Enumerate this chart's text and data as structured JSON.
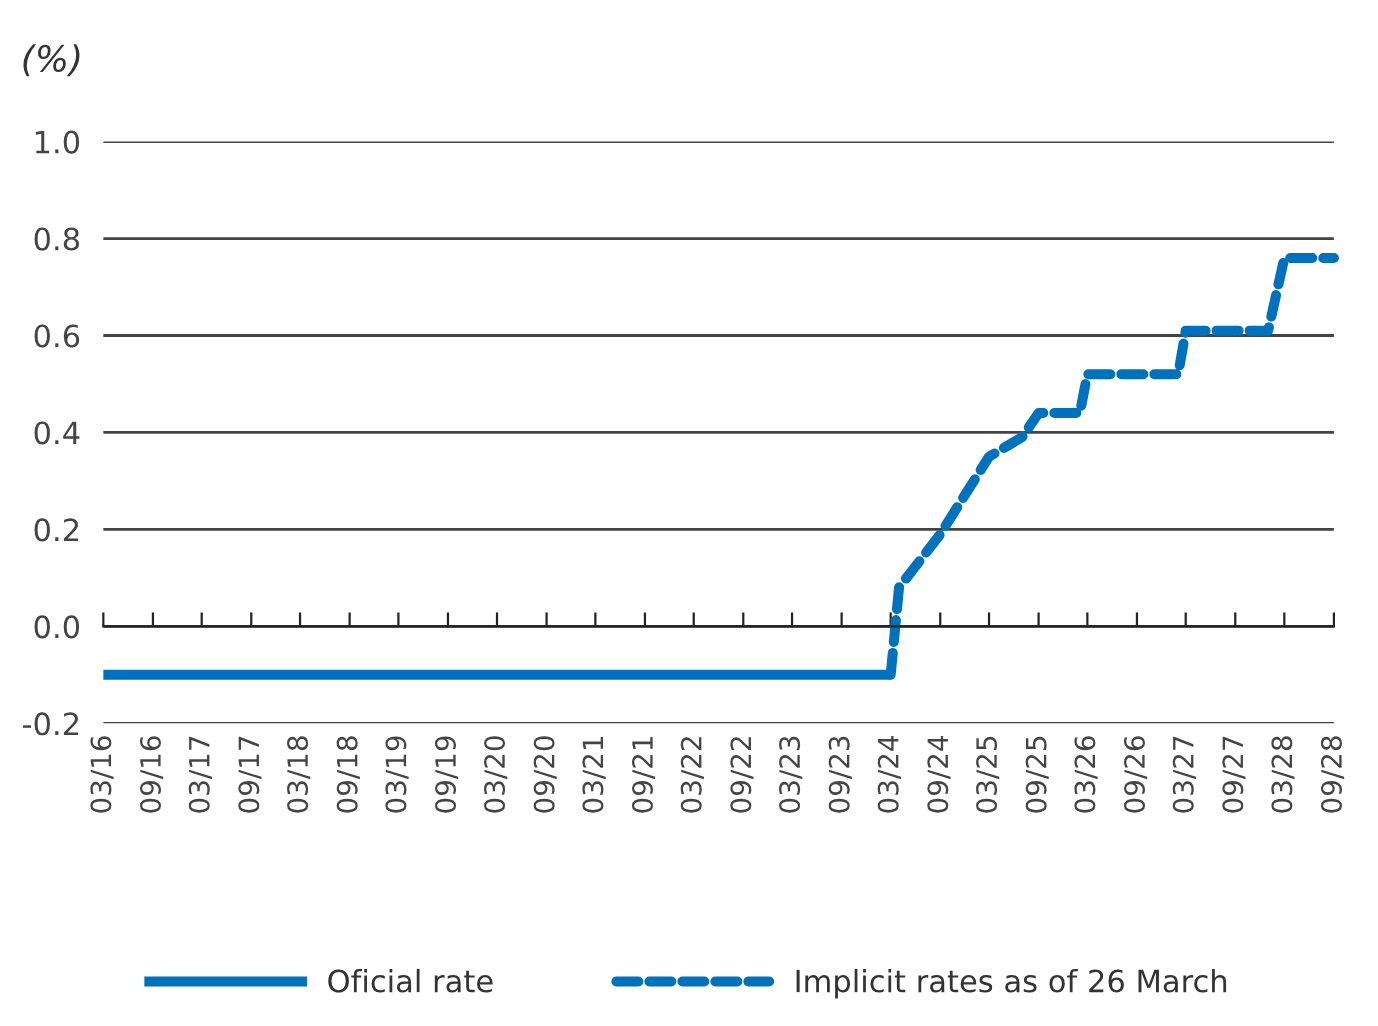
{
  "chart_data": {
    "type": "step",
    "ylabel": "(%)",
    "series": [
      {
        "name": "Oficial rate",
        "color": "#0071bc",
        "line_style": "solid",
        "x": [
          "2016-03",
          "2024-03"
        ],
        "values": [
          -0.1,
          -0.1
        ]
      },
      {
        "name": "Implicit rates as of 26 March",
        "color": "#0071bc",
        "line_style": "dashed",
        "type": "line",
        "x": [
          "2024-03",
          "2024-04",
          "2024-09",
          "2025-03",
          "2025-07",
          "2025-09",
          "2026-02",
          "2026-03",
          "2027-02",
          "2027-03",
          "2028-01",
          "2028-03",
          "2028-09"
        ],
        "values": [
          -0.1,
          0.08,
          0.19,
          0.35,
          0.39,
          0.44,
          0.44,
          0.52,
          0.52,
          0.61,
          0.61,
          0.76,
          0.76
        ]
      }
    ],
    "xlim": [
      "2016-03",
      "2028-09"
    ],
    "xticks": [
      {
        "value": "2016-03",
        "label": "03/16"
      },
      {
        "value": "2016-09",
        "label": "09/16"
      },
      {
        "value": "2017-03",
        "label": "03/17"
      },
      {
        "value": "2017-09",
        "label": "09/17"
      },
      {
        "value": "2018-03",
        "label": "03/18"
      },
      {
        "value": "2018-09",
        "label": "09/18"
      },
      {
        "value": "2019-03",
        "label": "03/19"
      },
      {
        "value": "2019-09",
        "label": "09/19"
      },
      {
        "value": "2020-03",
        "label": "03/20"
      },
      {
        "value": "2020-09",
        "label": "09/20"
      },
      {
        "value": "2021-03",
        "label": "03/21"
      },
      {
        "value": "2021-09",
        "label": "09/21"
      },
      {
        "value": "2022-03",
        "label": "03/22"
      },
      {
        "value": "2022-09",
        "label": "09/22"
      },
      {
        "value": "2023-03",
        "label": "03/23"
      },
      {
        "value": "2023-09",
        "label": "09/23"
      },
      {
        "value": "2024-03",
        "label": "03/24"
      },
      {
        "value": "2024-09",
        "label": "09/24"
      },
      {
        "value": "2025-03",
        "label": "03/25"
      },
      {
        "value": "2025-09",
        "label": "09/25"
      },
      {
        "value": "2026-03",
        "label": "03/26"
      },
      {
        "value": "2026-09",
        "label": "09/26"
      },
      {
        "value": "2027-03",
        "label": "03/27"
      },
      {
        "value": "2027-09",
        "label": "09/27"
      },
      {
        "value": "2028-03",
        "label": "03/28"
      },
      {
        "value": "2028-09",
        "label": "09/28"
      }
    ],
    "ylim": [
      -0.2,
      1.0
    ],
    "yticks": [
      {
        "value": -0.2,
        "label": "-0.2"
      },
      {
        "value": 0.0,
        "label": "0.0"
      },
      {
        "value": 0.2,
        "label": "0.2"
      },
      {
        "value": 0.4,
        "label": "0.4"
      },
      {
        "value": 0.6,
        "label": "0.6"
      },
      {
        "value": 0.8,
        "label": "0.8"
      },
      {
        "value": 1.0,
        "label": "1.0"
      }
    ],
    "grid": "y",
    "legend": "bottom"
  }
}
